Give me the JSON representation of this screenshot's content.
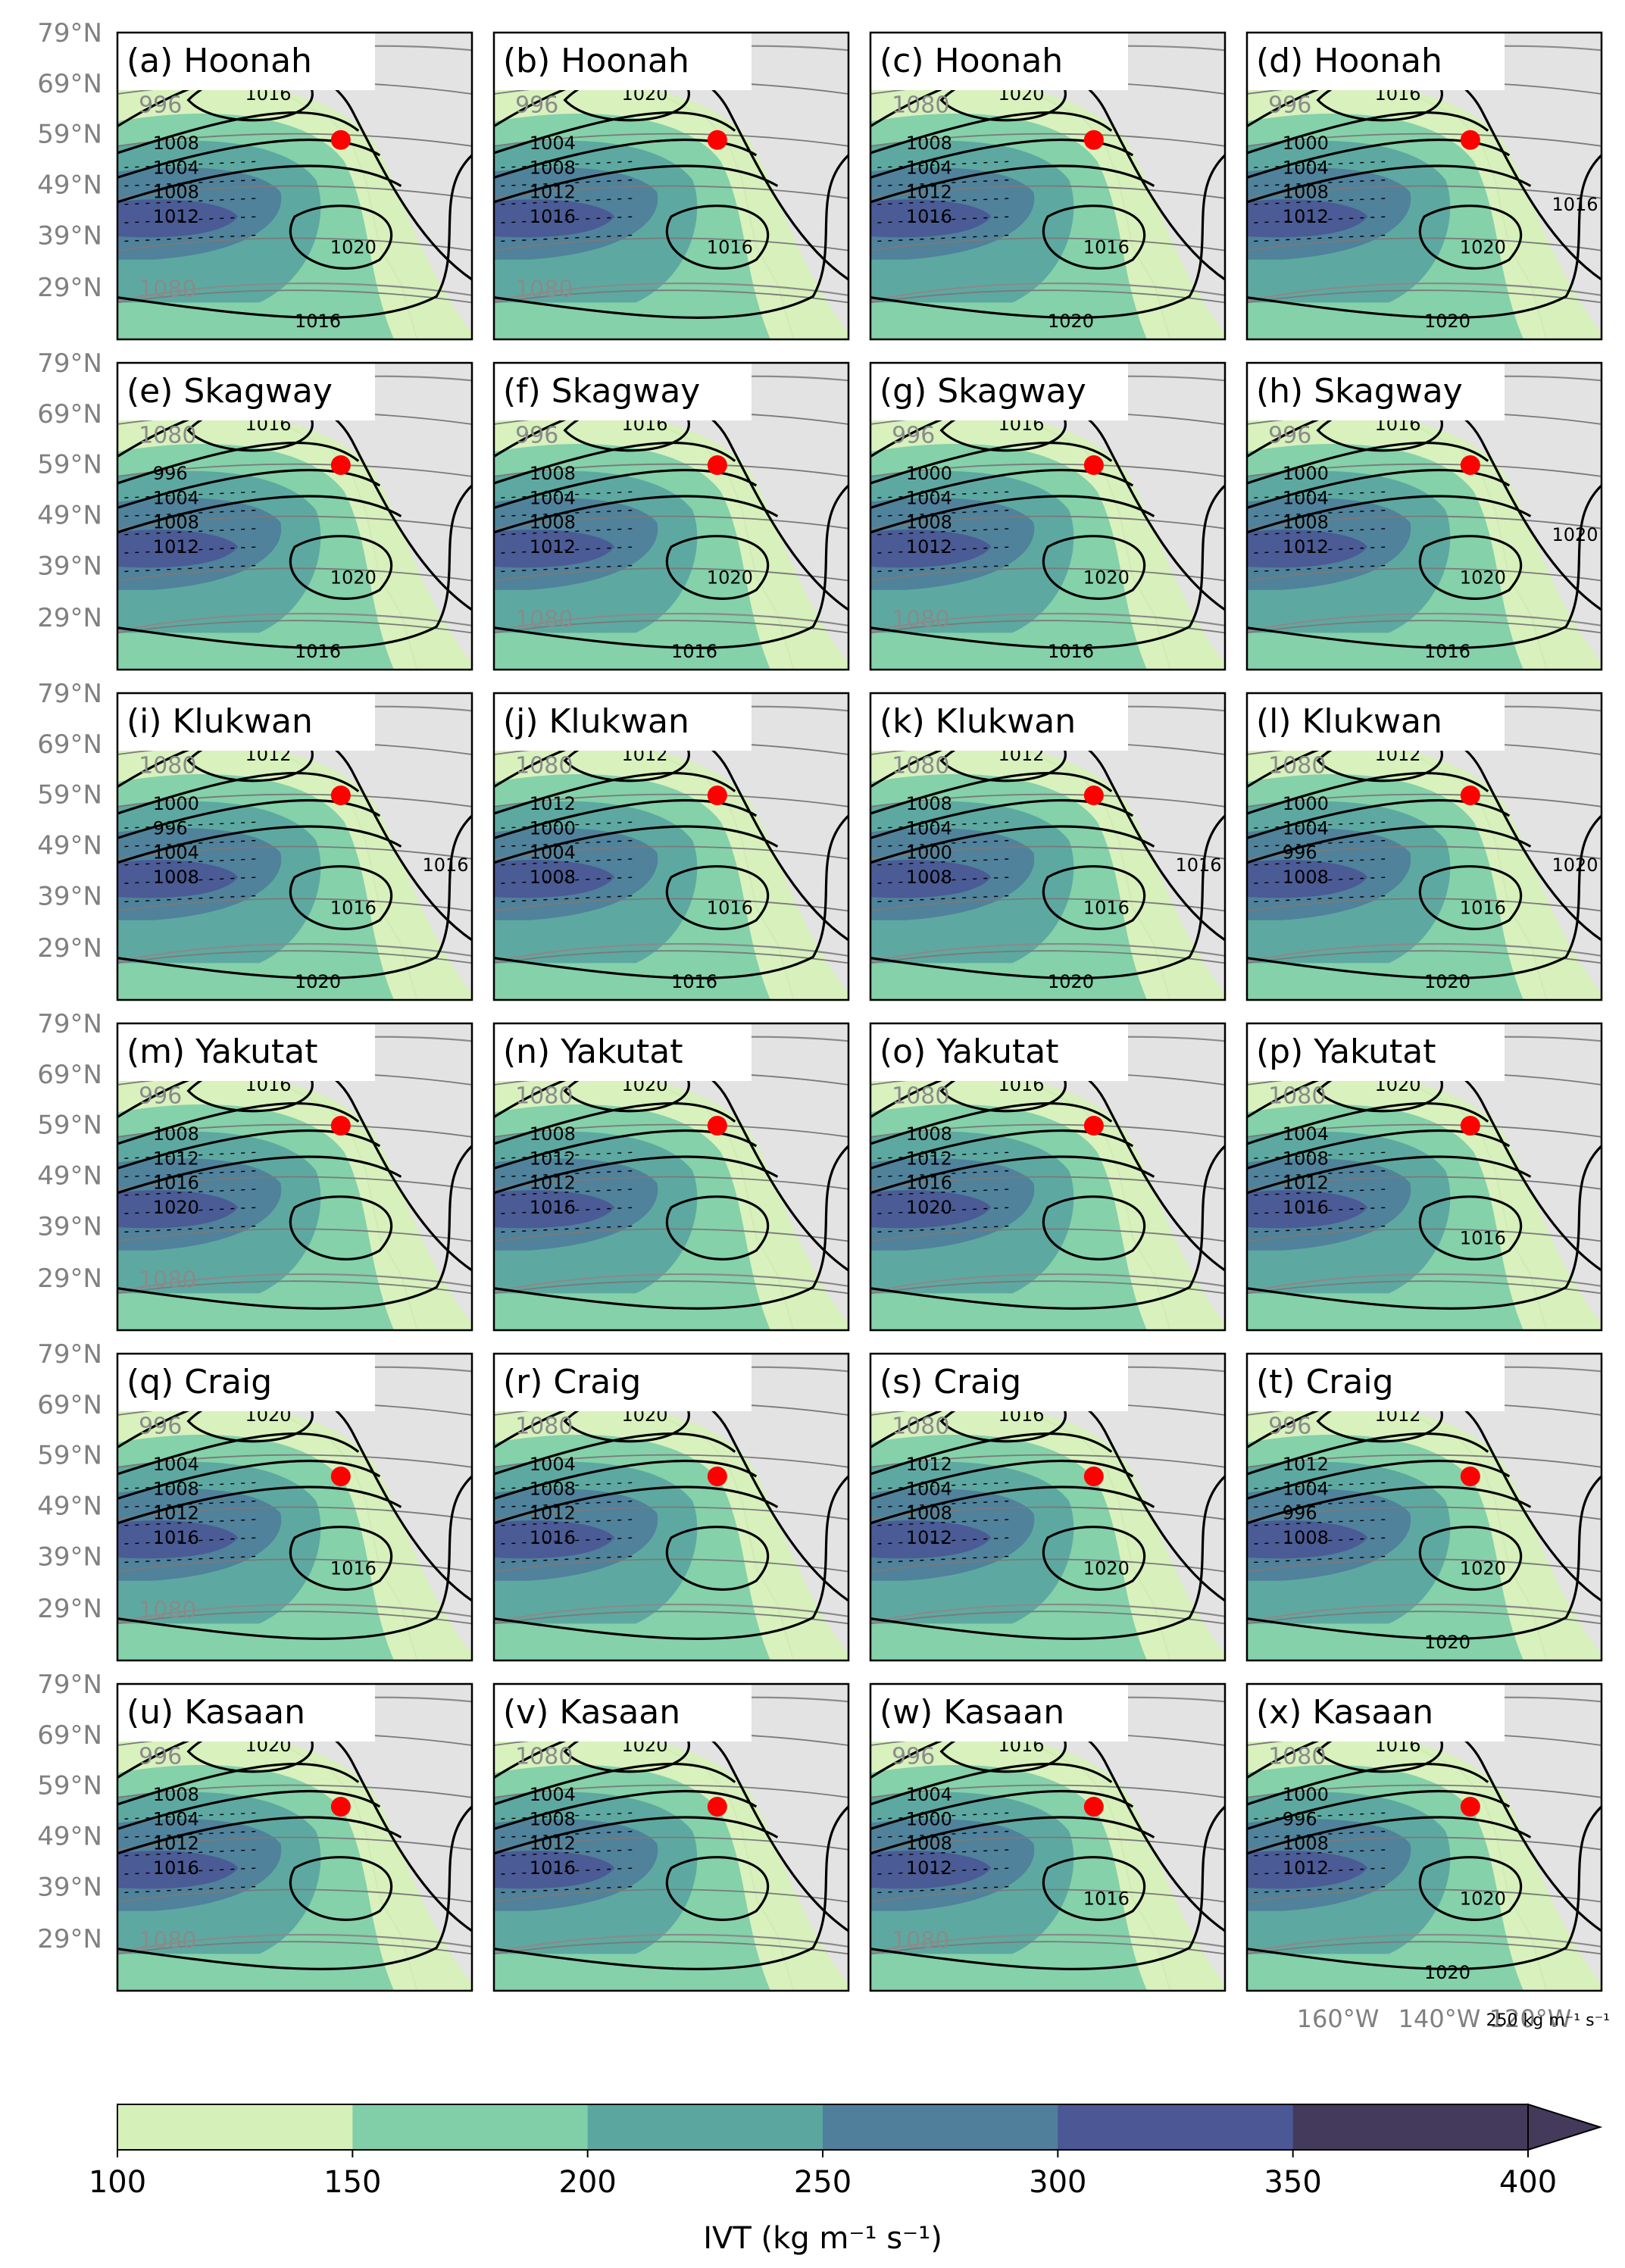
{
  "chart_data": {
    "type": "heatmap",
    "description_layout": "4 columns x 6 rows of map panels",
    "panels": [
      {
        "title": "(a) Hoonah",
        "isobars": [
          "1008",
          "1004",
          "1008",
          "1012",
          "1016",
          "1020",
          "1016"
        ],
        "gh": [
          "996",
          "1080"
        ],
        "marker_lat": 58
      },
      {
        "title": "(b) Hoonah",
        "isobars": [
          "1004",
          "1008",
          "1012",
          "1016",
          "1020",
          "1016"
        ],
        "gh": [
          "996",
          "1080"
        ],
        "marker_lat": 58
      },
      {
        "title": "(c) Hoonah",
        "isobars": [
          "1008",
          "1004",
          "1012",
          "1016",
          "1020",
          "1016",
          "1020"
        ],
        "gh": [
          "1080"
        ],
        "marker_lat": 58
      },
      {
        "title": "(d) Hoonah",
        "isobars": [
          "1000",
          "1004",
          "1008",
          "1012",
          "1016",
          "1020",
          "1020",
          "1016"
        ],
        "gh": [
          "996"
        ],
        "marker_lat": 58
      },
      {
        "title": "(e) Skagway",
        "isobars": [
          "996",
          "1004",
          "1008",
          "1012",
          "1016",
          "1020",
          "1016"
        ],
        "gh": [
          "1080"
        ],
        "marker_lat": 59
      },
      {
        "title": "(f) Skagway",
        "isobars": [
          "1008",
          "1004",
          "1008",
          "1012",
          "1016",
          "1020",
          "1016"
        ],
        "gh": [
          "996",
          "1080"
        ],
        "marker_lat": 59
      },
      {
        "title": "(g) Skagway",
        "isobars": [
          "1000",
          "1004",
          "1008",
          "1012",
          "1016",
          "1020",
          "1016"
        ],
        "gh": [
          "996",
          "1080"
        ],
        "marker_lat": 59
      },
      {
        "title": "(h) Skagway",
        "isobars": [
          "1000",
          "1004",
          "1008",
          "1012",
          "1016",
          "1020",
          "1016",
          "1020"
        ],
        "gh": [
          "996"
        ],
        "marker_lat": 59
      },
      {
        "title": "(i) Klukwan",
        "isobars": [
          "1000",
          "996",
          "1004",
          "1008",
          "1012",
          "1016",
          "1020",
          "1016"
        ],
        "gh": [
          "1080"
        ],
        "marker_lat": 59
      },
      {
        "title": "(j) Klukwan",
        "isobars": [
          "1012",
          "1000",
          "1004",
          "1008",
          "1012",
          "1016",
          "1016"
        ],
        "gh": [
          "1080"
        ],
        "marker_lat": 59
      },
      {
        "title": "(k) Klukwan",
        "isobars": [
          "1008",
          "1004",
          "1000",
          "1008",
          "1012",
          "1016",
          "1020",
          "1016"
        ],
        "gh": [
          "1080"
        ],
        "marker_lat": 59
      },
      {
        "title": "(l) Klukwan",
        "isobars": [
          "1000",
          "1004",
          "996",
          "1008",
          "1012",
          "1016",
          "1020",
          "1020"
        ],
        "gh": [
          "1080"
        ],
        "marker_lat": 59
      },
      {
        "title": "(m) Yakutat",
        "isobars": [
          "1008",
          "1012",
          "1016",
          "1020",
          "1016"
        ],
        "gh": [
          "996",
          "1080"
        ],
        "marker_lat": 59
      },
      {
        "title": "(n) Yakutat",
        "isobars": [
          "1008",
          "1012",
          "1012",
          "1016",
          "1020"
        ],
        "gh": [
          "1080"
        ],
        "marker_lat": 59
      },
      {
        "title": "(o) Yakutat",
        "isobars": [
          "1008",
          "1012",
          "1016",
          "1020",
          "1016"
        ],
        "gh": [
          "1080"
        ],
        "marker_lat": 59
      },
      {
        "title": "(p) Yakutat",
        "isobars": [
          "1004",
          "1008",
          "1012",
          "1016",
          "1020",
          "1016"
        ],
        "gh": [
          "1080"
        ],
        "marker_lat": 59
      },
      {
        "title": "(q) Craig",
        "isobars": [
          "1004",
          "1008",
          "1012",
          "1016",
          "1020",
          "1016"
        ],
        "gh": [
          "996",
          "1080"
        ],
        "marker_lat": 55
      },
      {
        "title": "(r) Craig",
        "isobars": [
          "1004",
          "1008",
          "1012",
          "1016",
          "1020"
        ],
        "gh": [
          "1080"
        ],
        "marker_lat": 55
      },
      {
        "title": "(s) Craig",
        "isobars": [
          "1012",
          "1004",
          "1008",
          "1012",
          "1016",
          "1020"
        ],
        "gh": [
          "1080"
        ],
        "marker_lat": 55
      },
      {
        "title": "(t) Craig",
        "isobars": [
          "1012",
          "1004",
          "996",
          "1008",
          "1012",
          "1020",
          "1020"
        ],
        "gh": [
          "996"
        ],
        "marker_lat": 55
      },
      {
        "title": "(u) Kasaan",
        "isobars": [
          "1008",
          "1004",
          "1012",
          "1016",
          "1020"
        ],
        "gh": [
          "996",
          "1080"
        ],
        "marker_lat": 55
      },
      {
        "title": "(v) Kasaan",
        "isobars": [
          "1004",
          "1008",
          "1012",
          "1016",
          "1020"
        ],
        "gh": [
          "1080"
        ],
        "marker_lat": 55
      },
      {
        "title": "(w) Kasaan",
        "isobars": [
          "1004",
          "1000",
          "1008",
          "1012",
          "1016",
          "1016"
        ],
        "gh": [
          "996",
          "1080"
        ],
        "marker_lat": 55
      },
      {
        "title": "(x) Kasaan",
        "isobars": [
          "1000",
          "996",
          "1008",
          "1012",
          "1016",
          "1020",
          "1020"
        ],
        "gh": [
          "1080"
        ],
        "marker_lat": 55
      }
    ],
    "lat_ticks": [
      "79°N",
      "69°N",
      "59°N",
      "49°N",
      "39°N",
      "29°N"
    ],
    "lon_ticks": [
      "160°W",
      "140°W",
      "120°W"
    ],
    "reference_vector": "250 kg m⁻¹ s⁻¹",
    "colorbar": {
      "label": "IVT (kg m⁻¹ s⁻¹)",
      "ticks": [
        "100",
        "150",
        "200",
        "250",
        "300",
        "350",
        "400"
      ],
      "colors": [
        "#d6f0b9",
        "#80cfa9",
        "#5ba7a0",
        "#4f7f9b",
        "#4b5895",
        "#443a5c"
      ],
      "extend": "max"
    }
  }
}
